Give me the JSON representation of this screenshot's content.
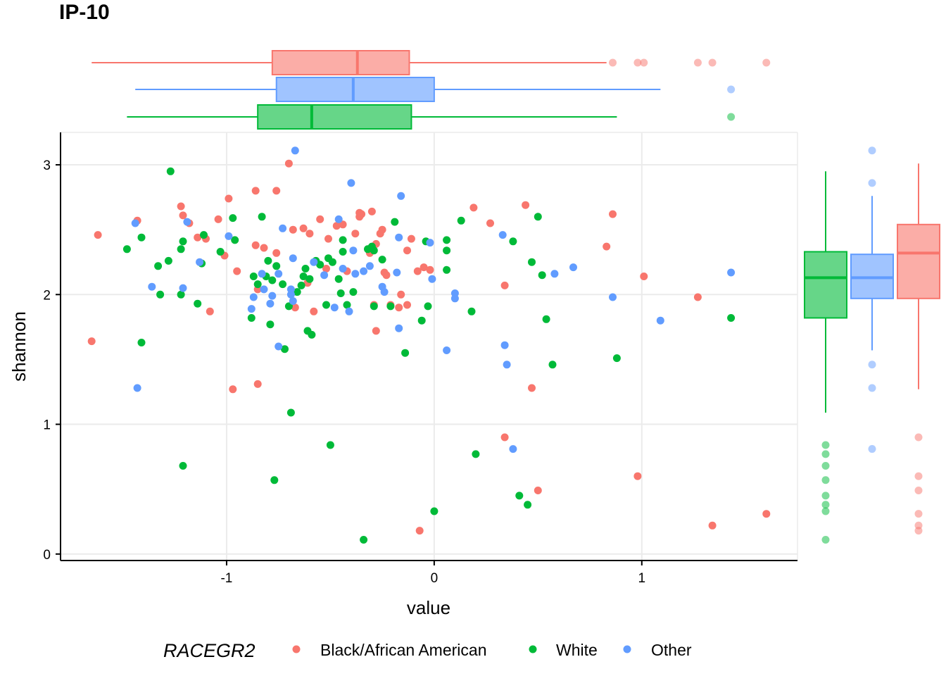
{
  "chart_data": {
    "type": "scatter",
    "title": "IP-10",
    "xlabel": "value",
    "ylabel": "shannon",
    "xlim": [
      -1.8,
      1.75
    ],
    "ylim": [
      -0.05,
      3.25
    ],
    "xticks": [
      -1,
      0,
      1
    ],
    "xtick_labels": [
      "-1",
      "0",
      "1"
    ],
    "yticks": [
      0,
      1,
      2,
      3
    ],
    "ytick_labels": [
      "0",
      "1",
      "2",
      "3"
    ],
    "grid": true,
    "marginals": "boxplots on top (x) and right (y)",
    "legend": {
      "title": "RACEGR2",
      "position": "bottom"
    },
    "series": [
      {
        "name": "Black/African American",
        "color": "#F8766D",
        "points": [
          [
            -1.62,
            2.46
          ],
          [
            -1.43,
            2.57
          ],
          [
            -1.65,
            1.64
          ],
          [
            -1.22,
            2.68
          ],
          [
            -1.21,
            2.61
          ],
          [
            -1.18,
            2.55
          ],
          [
            -1.14,
            2.44
          ],
          [
            -1.1,
            2.43
          ],
          [
            -1.08,
            1.87
          ],
          [
            -1.04,
            2.58
          ],
          [
            -1.01,
            2.3
          ],
          [
            -0.99,
            2.74
          ],
          [
            -0.97,
            1.27
          ],
          [
            -0.95,
            2.18
          ],
          [
            -0.86,
            2.8
          ],
          [
            -0.86,
            2.38
          ],
          [
            -0.85,
            2.04
          ],
          [
            -0.85,
            1.31
          ],
          [
            -0.82,
            2.36
          ],
          [
            -0.76,
            2.8
          ],
          [
            -0.76,
            2.32
          ],
          [
            -0.7,
            3.01
          ],
          [
            -0.68,
            2.5
          ],
          [
            -0.67,
            1.9
          ],
          [
            -0.63,
            2.51
          ],
          [
            -0.61,
            2.09
          ],
          [
            -0.6,
            2.47
          ],
          [
            -0.58,
            1.87
          ],
          [
            -0.55,
            2.58
          ],
          [
            -0.52,
            2.2
          ],
          [
            -0.51,
            2.43
          ],
          [
            -0.47,
            2.53
          ],
          [
            -0.44,
            2.54
          ],
          [
            -0.42,
            2.18
          ],
          [
            -0.38,
            2.47
          ],
          [
            -0.36,
            2.6
          ],
          [
            -0.36,
            2.63
          ],
          [
            -0.35,
            2.62
          ],
          [
            -0.31,
            2.32
          ],
          [
            -0.3,
            2.64
          ],
          [
            -0.29,
            1.92
          ],
          [
            -0.28,
            2.39
          ],
          [
            -0.28,
            1.72
          ],
          [
            -0.26,
            2.47
          ],
          [
            -0.25,
            2.5
          ],
          [
            -0.24,
            2.17
          ],
          [
            -0.23,
            2.15
          ],
          [
            -0.21,
            1.92
          ],
          [
            -0.17,
            1.9
          ],
          [
            -0.16,
            2.0
          ],
          [
            -0.13,
            1.92
          ],
          [
            -0.13,
            2.34
          ],
          [
            -0.11,
            2.43
          ],
          [
            -0.08,
            2.18
          ],
          [
            -0.07,
            0.18
          ],
          [
            -0.05,
            2.21
          ],
          [
            -0.02,
            2.19
          ],
          [
            0.19,
            2.67
          ],
          [
            0.27,
            2.55
          ],
          [
            0.34,
            2.07
          ],
          [
            0.34,
            0.9
          ],
          [
            0.44,
            2.69
          ],
          [
            0.47,
            1.28
          ],
          [
            0.5,
            0.49
          ],
          [
            0.83,
            2.37
          ],
          [
            0.86,
            2.62
          ],
          [
            0.98,
            0.6
          ],
          [
            1.01,
            2.14
          ],
          [
            1.27,
            1.98
          ],
          [
            1.34,
            0.22
          ],
          [
            1.6,
            0.31
          ]
        ]
      },
      {
        "name": "White",
        "color": "#00BA38",
        "points": [
          [
            -1.48,
            2.35
          ],
          [
            -1.41,
            1.63
          ],
          [
            -1.41,
            2.44
          ],
          [
            -1.33,
            2.22
          ],
          [
            -1.32,
            2.0
          ],
          [
            -1.28,
            2.26
          ],
          [
            -1.27,
            2.95
          ],
          [
            -1.22,
            2.35
          ],
          [
            -1.21,
            2.41
          ],
          [
            -1.22,
            2.0
          ],
          [
            -1.21,
            0.68
          ],
          [
            -1.14,
            1.93
          ],
          [
            -1.12,
            2.24
          ],
          [
            -1.11,
            2.46
          ],
          [
            -1.03,
            2.33
          ],
          [
            -0.97,
            2.59
          ],
          [
            -0.96,
            2.42
          ],
          [
            -0.88,
            1.82
          ],
          [
            -0.87,
            2.14
          ],
          [
            -0.85,
            2.08
          ],
          [
            -0.83,
            2.6
          ],
          [
            -0.81,
            2.14
          ],
          [
            -0.8,
            2.26
          ],
          [
            -0.79,
            1.77
          ],
          [
            -0.78,
            2.11
          ],
          [
            -0.77,
            0.57
          ],
          [
            -0.76,
            2.22
          ],
          [
            -0.73,
            2.08
          ],
          [
            -0.72,
            1.58
          ],
          [
            -0.7,
            1.91
          ],
          [
            -0.69,
            1.09
          ],
          [
            -0.66,
            2.02
          ],
          [
            -0.64,
            2.07
          ],
          [
            -0.63,
            2.14
          ],
          [
            -0.62,
            2.2
          ],
          [
            -0.61,
            1.72
          ],
          [
            -0.6,
            2.12
          ],
          [
            -0.59,
            1.69
          ],
          [
            -0.57,
            2.26
          ],
          [
            -0.55,
            2.23
          ],
          [
            -0.52,
            1.92
          ],
          [
            -0.51,
            2.28
          ],
          [
            -0.5,
            0.84
          ],
          [
            -0.49,
            2.25
          ],
          [
            -0.46,
            2.12
          ],
          [
            -0.45,
            2.01
          ],
          [
            -0.44,
            2.33
          ],
          [
            -0.44,
            2.42
          ],
          [
            -0.42,
            1.92
          ],
          [
            -0.39,
            2.02
          ],
          [
            -0.34,
            0.11
          ],
          [
            -0.32,
            2.35
          ],
          [
            -0.3,
            2.37
          ],
          [
            -0.29,
            1.91
          ],
          [
            -0.29,
            2.34
          ],
          [
            -0.25,
            2.27
          ],
          [
            -0.21,
            1.91
          ],
          [
            -0.19,
            2.56
          ],
          [
            -0.14,
            1.55
          ],
          [
            -0.06,
            1.8
          ],
          [
            -0.03,
            1.91
          ],
          [
            -0.04,
            2.41
          ],
          [
            0.0,
            0.33
          ],
          [
            0.06,
            2.42
          ],
          [
            0.06,
            2.19
          ],
          [
            0.06,
            2.34
          ],
          [
            0.13,
            2.57
          ],
          [
            0.18,
            1.87
          ],
          [
            0.2,
            0.77
          ],
          [
            0.38,
            2.41
          ],
          [
            0.41,
            0.45
          ],
          [
            0.45,
            0.38
          ],
          [
            0.47,
            2.25
          ],
          [
            0.5,
            2.6
          ],
          [
            0.52,
            2.15
          ],
          [
            0.54,
            1.81
          ],
          [
            0.57,
            1.46
          ],
          [
            0.88,
            1.51
          ],
          [
            1.43,
            1.82
          ]
        ]
      },
      {
        "name": "Other",
        "color": "#619CFF",
        "points": [
          [
            -1.44,
            2.55
          ],
          [
            -1.43,
            1.28
          ],
          [
            -1.36,
            2.06
          ],
          [
            -1.21,
            2.05
          ],
          [
            -1.19,
            2.56
          ],
          [
            -1.13,
            2.25
          ],
          [
            -0.99,
            2.45
          ],
          [
            -0.88,
            1.89
          ],
          [
            -0.87,
            1.98
          ],
          [
            -0.83,
            2.16
          ],
          [
            -0.82,
            2.04
          ],
          [
            -0.79,
            1.93
          ],
          [
            -0.78,
            1.99
          ],
          [
            -0.75,
            2.16
          ],
          [
            -0.75,
            1.6
          ],
          [
            -0.73,
            2.51
          ],
          [
            -0.69,
            2.04
          ],
          [
            -0.69,
            2.0
          ],
          [
            -0.68,
            2.28
          ],
          [
            -0.68,
            1.95
          ],
          [
            -0.67,
            3.11
          ],
          [
            -0.58,
            2.25
          ],
          [
            -0.53,
            2.15
          ],
          [
            -0.48,
            1.9
          ],
          [
            -0.46,
            2.58
          ],
          [
            -0.44,
            2.2
          ],
          [
            -0.41,
            1.87
          ],
          [
            -0.4,
            2.86
          ],
          [
            -0.39,
            2.34
          ],
          [
            -0.38,
            2.16
          ],
          [
            -0.34,
            2.18
          ],
          [
            -0.31,
            2.22
          ],
          [
            -0.25,
            2.06
          ],
          [
            -0.24,
            2.02
          ],
          [
            -0.18,
            2.17
          ],
          [
            -0.17,
            2.44
          ],
          [
            -0.17,
            1.74
          ],
          [
            -0.16,
            2.76
          ],
          [
            -0.02,
            2.4
          ],
          [
            -0.01,
            2.12
          ],
          [
            0.06,
            1.57
          ],
          [
            0.1,
            2.01
          ],
          [
            0.1,
            1.97
          ],
          [
            0.33,
            2.46
          ],
          [
            0.34,
            1.61
          ],
          [
            0.35,
            1.46
          ],
          [
            0.38,
            0.81
          ],
          [
            0.58,
            2.16
          ],
          [
            0.67,
            2.21
          ],
          [
            0.86,
            1.98
          ],
          [
            1.09,
            1.8
          ],
          [
            1.43,
            2.17
          ]
        ]
      }
    ],
    "top_boxplots": [
      {
        "name": "Black/African American",
        "color": "#F8766D",
        "q1": -0.78,
        "median": -0.37,
        "q3": -0.12,
        "whisker_low": -1.65,
        "whisker_high": 0.83,
        "outliers": [
          0.86,
          0.98,
          1.01,
          1.27,
          1.34,
          1.6
        ]
      },
      {
        "name": "Other",
        "color": "#619CFF",
        "q1": -0.76,
        "median": -0.39,
        "q3": 0.0,
        "whisker_low": -1.44,
        "whisker_high": 1.09,
        "outliers": [
          1.43
        ]
      },
      {
        "name": "White",
        "color": "#00BA38",
        "q1": -0.85,
        "median": -0.59,
        "q3": -0.11,
        "whisker_low": -1.48,
        "whisker_high": 0.88,
        "outliers": [
          1.43
        ]
      }
    ],
    "right_boxplots": [
      {
        "name": "White",
        "color": "#00BA38",
        "q1": 1.82,
        "median": 2.13,
        "q3": 2.33,
        "whisker_low": 1.09,
        "whisker_high": 2.95,
        "outliers": [
          0.84,
          0.77,
          0.68,
          0.57,
          0.45,
          0.38,
          0.33,
          0.11
        ]
      },
      {
        "name": "Other",
        "color": "#619CFF",
        "q1": 1.97,
        "median": 2.13,
        "q3": 2.31,
        "whisker_low": 1.57,
        "whisker_high": 2.76,
        "outliers": [
          3.11,
          2.86,
          1.46,
          1.28,
          0.81
        ]
      },
      {
        "name": "Black/African American",
        "color": "#F8766D",
        "q1": 1.97,
        "median": 2.32,
        "q3": 2.54,
        "whisker_low": 1.27,
        "whisker_high": 3.01,
        "outliers": [
          0.9,
          0.6,
          0.49,
          0.31,
          0.22,
          0.18
        ]
      }
    ]
  }
}
